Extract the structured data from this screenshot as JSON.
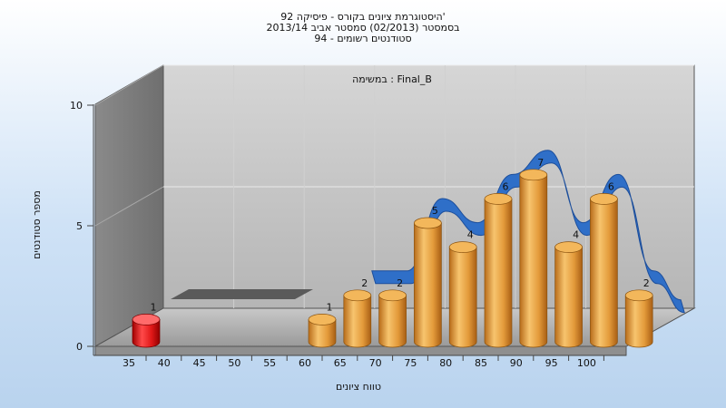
{
  "chart_data": {
    "type": "bar",
    "title_lines": [
      "היסטוגרמת ציונים בקורס - פיסיקה 92'",
      "בסמסטר  (02/2013)  סמסטר אביב 2013/14",
      "סטודנטים רשומים - 94"
    ],
    "annotation": "במשימה : Final_B",
    "xlabel": "טווח ציונים",
    "ylabel": "מספר סטודנטים",
    "x_ticks": [
      "35",
      "40",
      "45",
      "50",
      "55",
      "60",
      "65",
      "70",
      "75",
      "80",
      "85",
      "90",
      "95",
      "100"
    ],
    "y_ticks": [
      "0",
      "5",
      "10"
    ],
    "ylim": [
      0,
      10
    ],
    "bars": [
      {
        "x": 35,
        "value": 1,
        "label": "1",
        "color": "#e01818"
      },
      {
        "x": 60,
        "value": 1,
        "label": "1",
        "color": "#e8a040"
      },
      {
        "x": 65,
        "value": 2,
        "label": "2",
        "color": "#e8a040"
      },
      {
        "x": 70,
        "value": 2,
        "label": "2",
        "color": "#e8a040"
      },
      {
        "x": 75,
        "value": 5,
        "label": "5",
        "color": "#e8a040"
      },
      {
        "x": 80,
        "value": 4,
        "label": "4",
        "color": "#e8a040"
      },
      {
        "x": 85,
        "value": 6,
        "label": "6",
        "color": "#e8a040"
      },
      {
        "x": 90,
        "value": 7,
        "label": "7",
        "color": "#e8a040"
      },
      {
        "x": 95,
        "value": 4,
        "label": "4",
        "color": "#e8a040"
      },
      {
        "x": 100,
        "value": 6,
        "label": "6",
        "color": "#e8a040"
      },
      {
        "x": 105,
        "value": 2,
        "label": "2",
        "color": "#e8a040"
      }
    ],
    "trend_line": {
      "color": "#2f6fc8"
    },
    "grid": true
  }
}
